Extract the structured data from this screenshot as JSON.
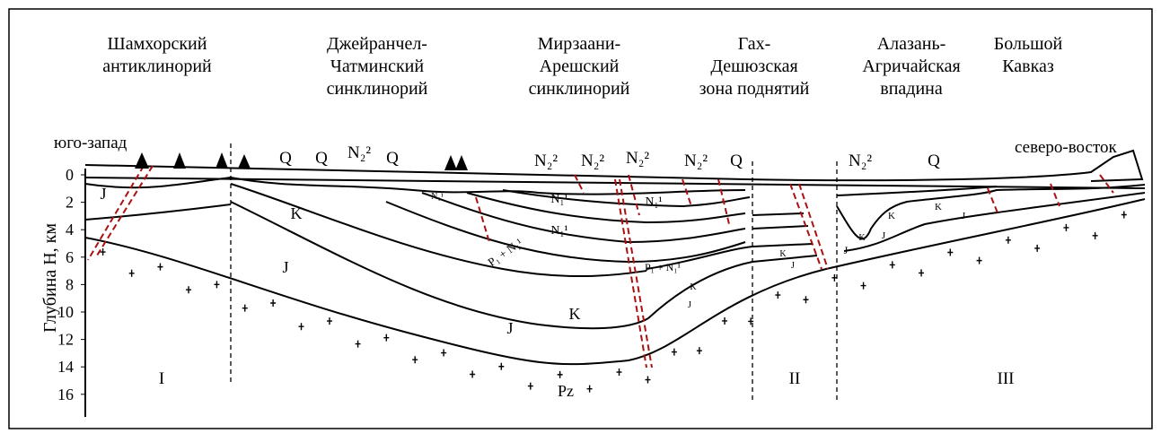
{
  "regions": [
    {
      "lines": [
        "Шамхорский",
        "антиклинорий"
      ]
    },
    {
      "lines": [
        "Джейранчел-",
        "Чатминский",
        "синклинорий"
      ]
    },
    {
      "lines": [
        "Мирзаани-",
        "Арешский",
        "синклинорий"
      ]
    },
    {
      "lines": [
        "Гах-",
        "Дешюзская",
        "зона поднятий"
      ]
    },
    {
      "lines": [
        "Алазань-",
        "Агричайская",
        "впадина"
      ]
    },
    {
      "lines": [
        "Большой",
        "Кавказ"
      ]
    }
  ],
  "directions": {
    "southwest": "юго-запад",
    "northeast": "северо-восток"
  },
  "depth_axis": {
    "label": "Глубина H, км",
    "ticks": [
      0,
      2,
      4,
      6,
      8,
      10,
      12,
      14,
      16
    ]
  },
  "layer_labels": [
    "Q",
    "Q",
    "N₂²",
    "Q",
    "N₂²",
    "N₂²",
    "N₂²",
    "N₂²",
    "Q",
    "N₂²",
    "Q",
    "J",
    "K",
    "J",
    "N₁¹",
    "N₁¹",
    "N₁¹",
    "N₁¹",
    "P₁ + N₁¹",
    "P₁ + N₁¹",
    "K",
    "J",
    "K",
    "J",
    "K",
    "J",
    "K",
    "J",
    "K",
    "K",
    "J",
    "J"
  ],
  "zones": [
    "I",
    "II",
    "III"
  ],
  "basement_label": "Pz"
}
